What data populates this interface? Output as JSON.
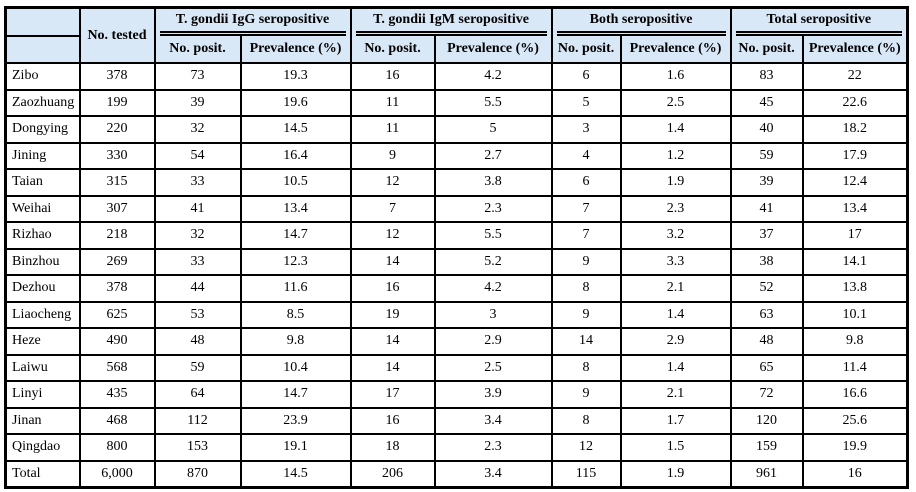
{
  "colors": {
    "header_bg": "#d9e8f7",
    "border": "#000000",
    "body_bg": "#ffffff",
    "text": "#000000"
  },
  "table": {
    "corner_label": "",
    "no_tested_header": "No. tested",
    "group_headers": [
      "T. gondii IgG seropositive",
      "T. gondii IgM seropositive",
      "Both seropositive",
      "Total seropositive"
    ],
    "sub_headers": [
      "No. posit.",
      "Prevalence (%)",
      "No. posit.",
      "Prevalence (%)",
      "No. posit.",
      "Prevalence (%)",
      "No. posit.",
      "Prevalence (%)"
    ]
  },
  "chart_data": {
    "type": "table",
    "columns": [
      "",
      "No. tested",
      "T. gondii IgG seropositive - No. posit.",
      "T. gondii IgG seropositive - Prevalence (%)",
      "T. gondii IgM seropositive - No. posit.",
      "T. gondii IgM seropositive - Prevalence (%)",
      "Both seropositive - No. posit.",
      "Both seropositive - Prevalence (%)",
      "Total seropositive - No. posit.",
      "Total seropositive - Prevalence (%)"
    ],
    "rows": [
      [
        "Zibo",
        "378",
        "73",
        "19.3",
        "16",
        "4.2",
        "6",
        "1.6",
        "83",
        "22"
      ],
      [
        "Zaozhuang",
        "199",
        "39",
        "19.6",
        "11",
        "5.5",
        "5",
        "2.5",
        "45",
        "22.6"
      ],
      [
        "Dongying",
        "220",
        "32",
        "14.5",
        "11",
        "5",
        "3",
        "1.4",
        "40",
        "18.2"
      ],
      [
        "Jining",
        "330",
        "54",
        "16.4",
        "9",
        "2.7",
        "4",
        "1.2",
        "59",
        "17.9"
      ],
      [
        "Taian",
        "315",
        "33",
        "10.5",
        "12",
        "3.8",
        "6",
        "1.9",
        "39",
        "12.4"
      ],
      [
        "Weihai",
        "307",
        "41",
        "13.4",
        "7",
        "2.3",
        "7",
        "2.3",
        "41",
        "13.4"
      ],
      [
        "Rizhao",
        "218",
        "32",
        "14.7",
        "12",
        "5.5",
        "7",
        "3.2",
        "37",
        "17"
      ],
      [
        "Binzhou",
        "269",
        "33",
        "12.3",
        "14",
        "5.2",
        "9",
        "3.3",
        "38",
        "14.1"
      ],
      [
        "Dezhou",
        "378",
        "44",
        "11.6",
        "16",
        "4.2",
        "8",
        "2.1",
        "52",
        "13.8"
      ],
      [
        "Liaocheng",
        "625",
        "53",
        "8.5",
        "19",
        "3",
        "9",
        "1.4",
        "63",
        "10.1"
      ],
      [
        "Heze",
        "490",
        "48",
        "9.8",
        "14",
        "2.9",
        "14",
        "2.9",
        "48",
        "9.8"
      ],
      [
        "Laiwu",
        "568",
        "59",
        "10.4",
        "14",
        "2.5",
        "8",
        "1.4",
        "65",
        "11.4"
      ],
      [
        "Linyi",
        "435",
        "64",
        "14.7",
        "17",
        "3.9",
        "9",
        "2.1",
        "72",
        "16.6"
      ],
      [
        "Jinan",
        "468",
        "112",
        "23.9",
        "16",
        "3.4",
        "8",
        "1.7",
        "120",
        "25.6"
      ],
      [
        "Qingdao",
        "800",
        "153",
        "19.1",
        "18",
        "2.3",
        "12",
        "1.5",
        "159",
        "19.9"
      ],
      [
        "Total",
        "6,000",
        "870",
        "14.5",
        "206",
        "3.4",
        "115",
        "1.9",
        "961",
        "16"
      ]
    ]
  }
}
